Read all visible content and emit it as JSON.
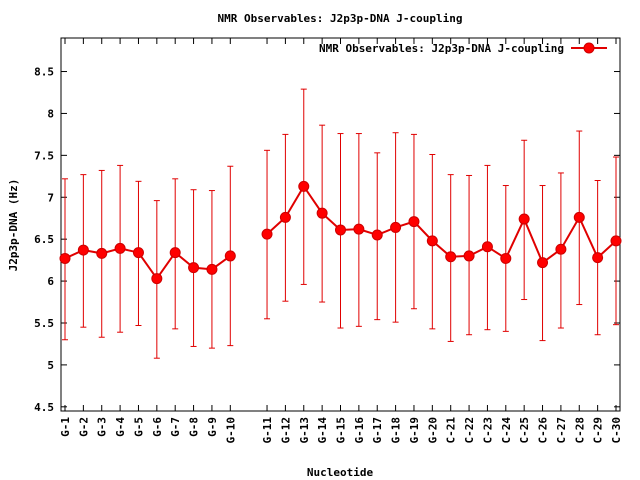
{
  "chart_data": {
    "type": "line",
    "title": "NMR Observables: J2p3p-DNA J-coupling",
    "xlabel": "Nucleotide",
    "ylabel": "J2p3p-DNA (Hz)",
    "ylim": [
      4.45,
      8.9
    ],
    "yticks": [
      "4.5",
      "5",
      "5.5",
      "6",
      "6.5",
      "7",
      "7.5",
      "8",
      "8.5"
    ],
    "ytick_values": [
      4.5,
      5,
      5.5,
      6,
      6.5,
      7,
      7.5,
      8,
      8.5
    ],
    "legend": {
      "position": "top-right",
      "label": "NMR Observables: J2p3p-DNA J-coupling"
    },
    "color": "#e00000",
    "categories": [
      "G-1",
      "G-2",
      "G-3",
      "G-4",
      "G-5",
      "G-6",
      "G-7",
      "G-8",
      "G-9",
      "G-10",
      "",
      "G-11",
      "G-12",
      "G-13",
      "G-14",
      "G-15",
      "G-16",
      "G-17",
      "G-18",
      "G-19",
      "G-20",
      "C-21",
      "C-22",
      "C-23",
      "C-24",
      "C-25",
      "C-26",
      "C-27",
      "C-28",
      "C-29",
      "C-30"
    ],
    "series": [
      {
        "name": "NMR Observables: J2p3p-DNA J-coupling",
        "values": [
          6.27,
          6.37,
          6.33,
          6.39,
          6.34,
          6.03,
          6.34,
          6.16,
          6.14,
          6.3,
          null,
          6.56,
          6.76,
          7.13,
          6.81,
          6.61,
          6.62,
          6.55,
          6.64,
          6.71,
          6.48,
          6.29,
          6.3,
          6.41,
          6.27,
          6.74,
          6.22,
          6.38,
          6.76,
          6.28,
          6.48
        ],
        "err_low": [
          5.3,
          5.45,
          5.33,
          5.39,
          5.47,
          5.08,
          5.43,
          5.22,
          5.2,
          5.23,
          null,
          5.55,
          5.76,
          5.96,
          5.75,
          5.44,
          5.46,
          5.54,
          5.51,
          5.67,
          5.43,
          5.28,
          5.36,
          5.42,
          5.4,
          5.78,
          5.29,
          5.44,
          5.72,
          5.36,
          5.48
        ],
        "err_high": [
          7.22,
          7.27,
          7.32,
          7.38,
          7.19,
          6.96,
          7.22,
          7.09,
          7.08,
          7.37,
          null,
          7.56,
          7.75,
          8.29,
          7.86,
          7.76,
          7.76,
          7.53,
          7.77,
          7.75,
          7.51,
          7.27,
          7.26,
          7.38,
          7.14,
          7.68,
          7.14,
          7.29,
          7.79,
          7.2,
          7.48
        ]
      }
    ]
  }
}
